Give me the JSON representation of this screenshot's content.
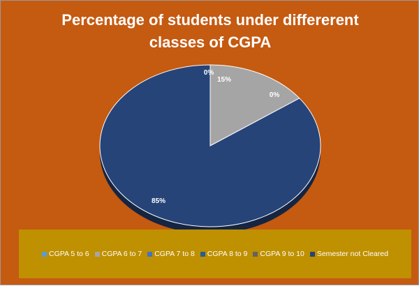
{
  "chart_data": {
    "type": "pie",
    "title": [
      "Percentage of students under differerent",
      "classes of CGPA"
    ],
    "categories": [
      "CGPA 5 to 6",
      "CGPA 6 to 7",
      "CGPA 7 to 8",
      "CGPA 8 to 9",
      "CGPA 9 to 10",
      "Semester not Cleared"
    ],
    "values": [
      0,
      15,
      0,
      0,
      0,
      85
    ],
    "data_labels": [
      "0%",
      "15%",
      "0%",
      "",
      "",
      "85%"
    ],
    "colors": [
      "#5b9bd5",
      "#a5a5a5",
      "#4472c4",
      "#255e91",
      "#636363",
      "#264478"
    ],
    "legend_position": "bottom",
    "style": "3d"
  }
}
